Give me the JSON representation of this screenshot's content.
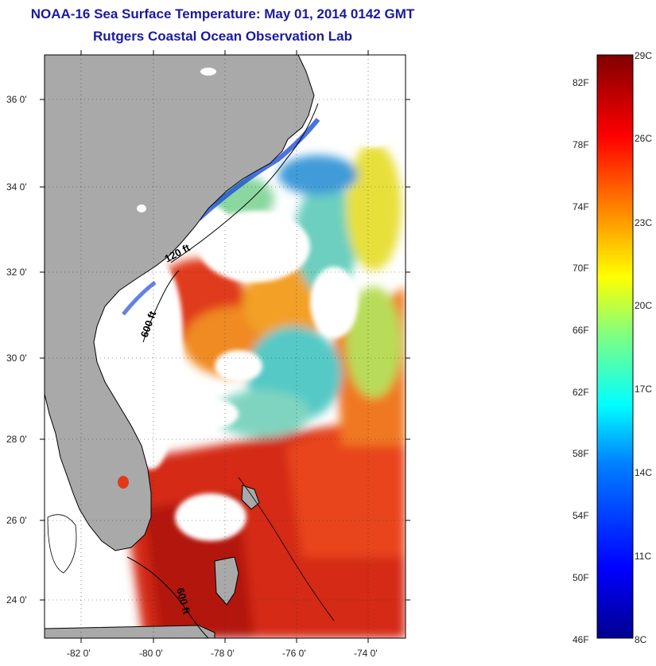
{
  "title": "NOAA-16 Sea Surface Temperature:  May 01, 2014 0142 GMT",
  "subtitle": "Rutgers Coastal Ocean Observation Lab",
  "map": {
    "lat_labels": [
      "36 0'",
      "34 0'",
      "32 0'",
      "30 0'",
      "28 0'",
      "26 0'",
      "24 0'"
    ],
    "lon_labels": [
      "-82 0'",
      "-80 0'",
      "-78 0'",
      "-76 0'",
      "-74 0'"
    ],
    "contour_labels": [
      "120 ft",
      "600 ft",
      "600 ft"
    ],
    "colors": {
      "land": "#a9a9a9",
      "cloud": "#ffffff",
      "warm": "#e03a1a",
      "hot": "#b3120e",
      "mild": "#f59a1f",
      "cool": "#35c6c9",
      "cold": "#1f4fd8",
      "yellow": "#e9e32a"
    }
  },
  "colorbar": {
    "fahrenheit": [
      "82F",
      "78F",
      "74F",
      "70F",
      "66F",
      "62F",
      "58F",
      "54F",
      "50F",
      "46F"
    ],
    "celsius": [
      "29C",
      "26C",
      "23C",
      "20C",
      "17C",
      "14C",
      "11C",
      "8C"
    ]
  }
}
